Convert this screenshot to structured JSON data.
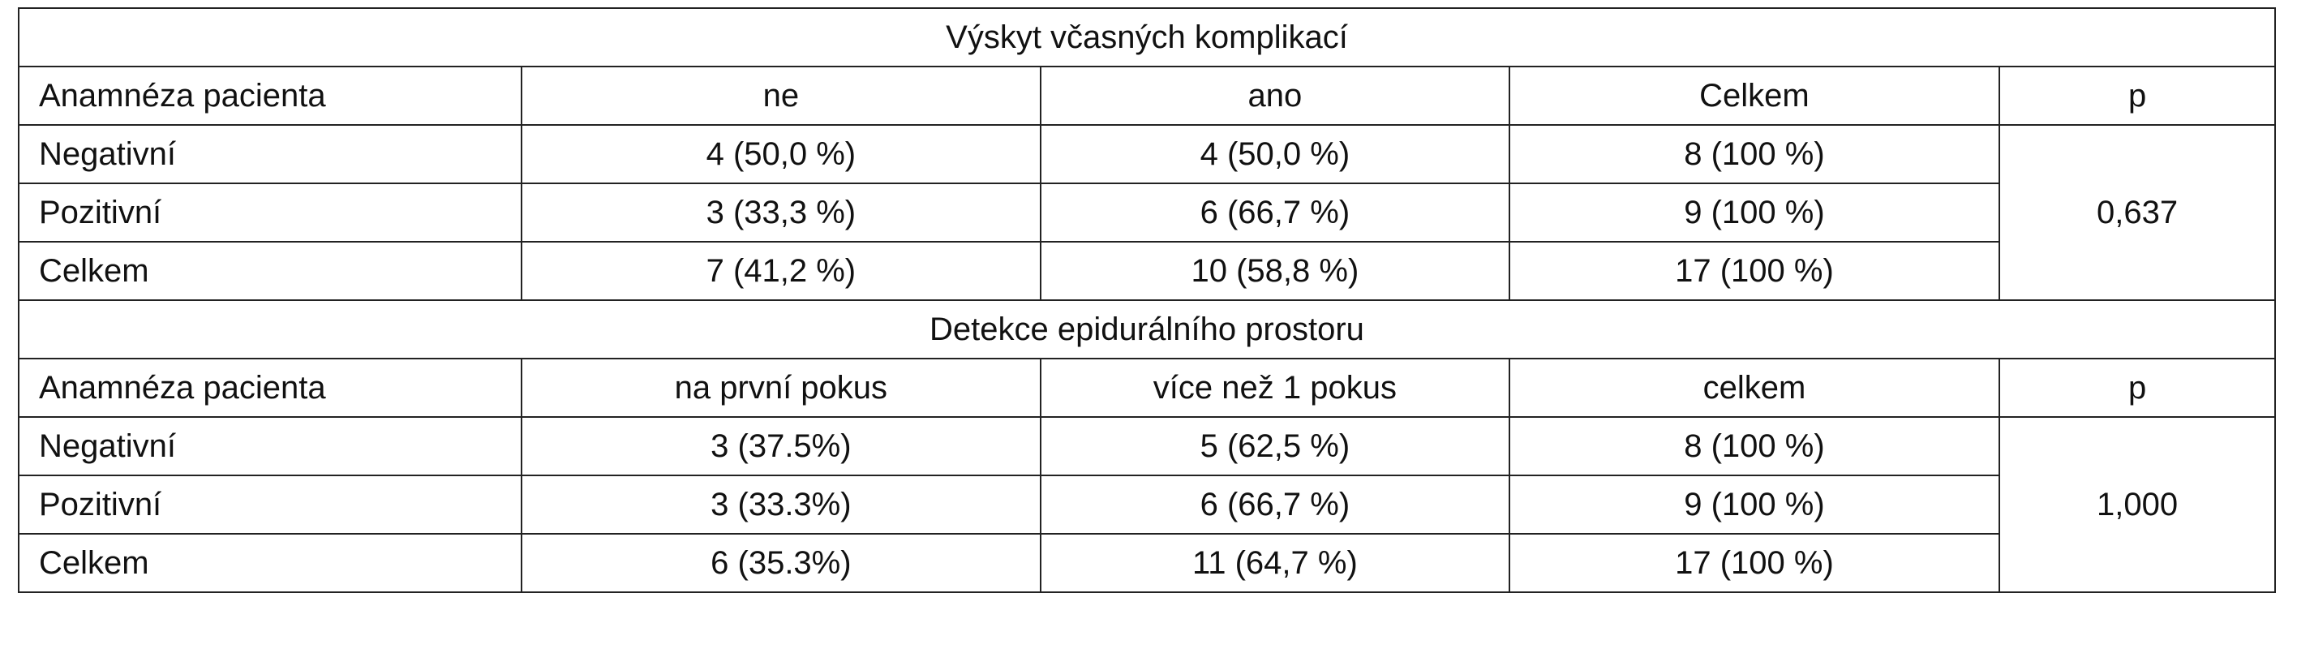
{
  "table": {
    "sections": [
      {
        "title": "Výskyt včasných komplikací",
        "header": [
          "Anamnéza pacienta",
          "ne",
          "ano",
          "Celkem",
          "p"
        ],
        "rows": [
          [
            "Negativní",
            "4 (50,0 %)",
            "4 (50,0 %)",
            "8 (100 %)"
          ],
          [
            "Pozitivní",
            "3 (33,3 %)",
            "6 (66,7 %)",
            "9 (100 %)"
          ],
          [
            "Celkem",
            "7 (41,2 %)",
            "10 (58,8 %)",
            "17 (100 %)"
          ]
        ],
        "p": "0,637"
      },
      {
        "title": "Detekce epidurálního prostoru",
        "header": [
          "Anamnéza pacienta",
          "na první pokus",
          "více než 1 pokus",
          "celkem",
          "p"
        ],
        "rows": [
          [
            "Negativní",
            "3 (37.5%)",
            "5 (62,5 %)",
            "8 (100 %)"
          ],
          [
            "Pozitivní",
            "3 (33.3%)",
            "6 (66,7 %)",
            "9 (100 %)"
          ],
          [
            "Celkem",
            "6 (35.3%)",
            "11 (64,7 %)",
            "17 (100 %)"
          ]
        ],
        "p": "1,000"
      }
    ]
  }
}
